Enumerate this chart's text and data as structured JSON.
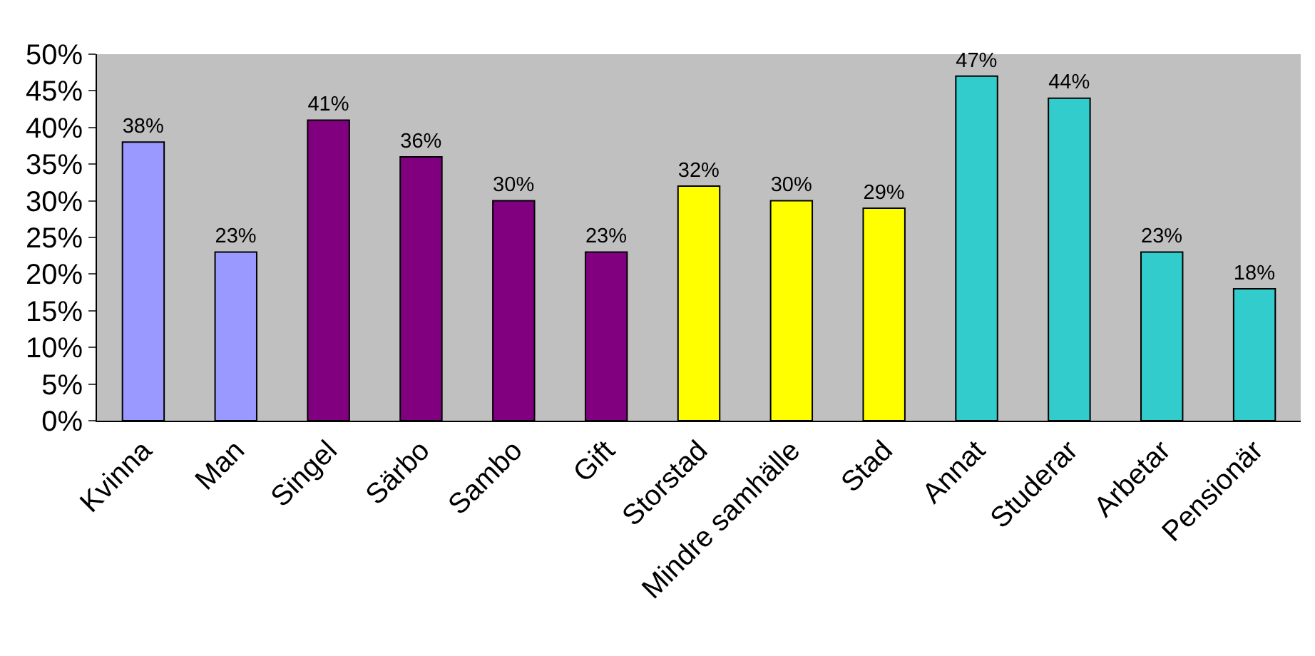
{
  "chart_data": {
    "type": "bar",
    "categories": [
      "Kvinna",
      "Man",
      "Singel",
      "Särbo",
      "Sambo",
      "Gift",
      "Storstad",
      "Mindre samhälle",
      "Stad",
      "Annat",
      "Studerar",
      "Arbetar",
      "Pensionär"
    ],
    "values": [
      38,
      23,
      41,
      36,
      30,
      23,
      32,
      30,
      29,
      47,
      44,
      23,
      18
    ],
    "value_labels": [
      "38%",
      "23%",
      "41%",
      "36%",
      "30%",
      "23%",
      "32%",
      "30%",
      "29%",
      "47%",
      "44%",
      "23%",
      "18%"
    ],
    "colors": [
      "#9999ff",
      "#9999ff",
      "#800080",
      "#800080",
      "#800080",
      "#800080",
      "#ffff00",
      "#ffff00",
      "#ffff00",
      "#33cccc",
      "#33cccc",
      "#33cccc",
      "#33cccc"
    ],
    "ylim": [
      0,
      50
    ],
    "yticks": [
      {
        "value": 0,
        "label": "0%"
      },
      {
        "value": 5,
        "label": "5%"
      },
      {
        "value": 10,
        "label": "10%"
      },
      {
        "value": 15,
        "label": "15%"
      },
      {
        "value": 20,
        "label": "20%"
      },
      {
        "value": 25,
        "label": "25%"
      },
      {
        "value": 30,
        "label": "30%"
      },
      {
        "value": 35,
        "label": "35%"
      },
      {
        "value": 40,
        "label": "40%"
      },
      {
        "value": 45,
        "label": "45%"
      },
      {
        "value": 50,
        "label": "50%"
      }
    ],
    "grid": false,
    "legend": false
  }
}
